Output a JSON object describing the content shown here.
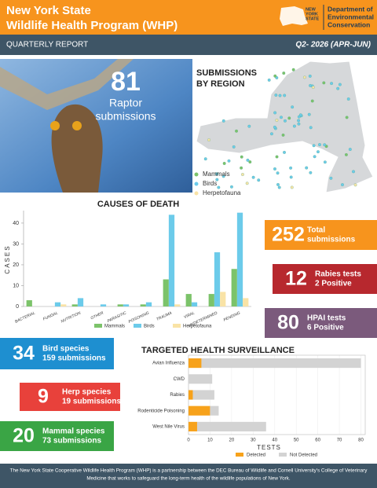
{
  "header": {
    "title_lines": [
      "New York State",
      "Wildlife Health Program (WHP)"
    ],
    "logo_lines": [
      "NEW",
      "YORK",
      "STATE"
    ],
    "agency_lines": [
      "Department of",
      "Environmental",
      "Conservation"
    ]
  },
  "report_bar": {
    "label": "QUARTERLY REPORT",
    "period": "Q2- 2026 (APR-JUN)"
  },
  "photo": {
    "number": 81,
    "label_lines": [
      "Raptor",
      "submissions"
    ]
  },
  "map": {
    "title_lines": [
      "SUBMISSIONS",
      "BY REGION"
    ],
    "legend": [
      {
        "label": "Mammals",
        "color": "#7cc36a"
      },
      {
        "label": "Birds",
        "color": "#6ccbea"
      },
      {
        "label": "Herpetofauna",
        "color": "#f9e3a6"
      }
    ]
  },
  "stats": [
    {
      "number": 252,
      "lines": [
        "Total",
        "submissions"
      ],
      "color": "#f7941d"
    },
    {
      "number": 12,
      "lines": [
        "Rabies tests",
        "2 Positive"
      ],
      "color": "#b7282e"
    },
    {
      "number": 80,
      "lines": [
        "HPAI tests",
        "6 Positive"
      ],
      "color": "#7b5a7c"
    },
    {
      "number": 34,
      "lines": [
        "Bird species",
        "159 submissions"
      ],
      "color": "#1e8fd0"
    },
    {
      "number": 9,
      "lines": [
        "Herp species",
        "19 submissions"
      ],
      "color": "#e8413b"
    },
    {
      "number": 20,
      "lines": [
        "Mammal species",
        "73 submissions"
      ],
      "color": "#3aa545"
    }
  ],
  "chart_data": [
    {
      "type": "bar",
      "title": "CAUSES OF DEATH",
      "ylabel": "CASES",
      "categories": [
        "BACTERIAL",
        "FUNGAL",
        "NUTRITION",
        "OTHER",
        "PARASITIC",
        "POISONING",
        "TRAUMA",
        "VIRAL",
        "UNDETERMINED",
        "PENDING"
      ],
      "series": [
        {
          "name": "Mammals",
          "color": "#7cc36a",
          "values": [
            3,
            0,
            1,
            0,
            1,
            1,
            13,
            6,
            6,
            18
          ]
        },
        {
          "name": "Birds",
          "color": "#6ccbea",
          "values": [
            0,
            2,
            4,
            1,
            1,
            2,
            44,
            2,
            26,
            45
          ]
        },
        {
          "name": "Herpetofauna",
          "color": "#f9e3a6",
          "values": [
            0,
            1,
            0,
            0,
            0,
            0,
            1,
            0,
            7,
            4
          ]
        }
      ],
      "ylim": [
        0,
        46
      ],
      "yticks": [
        0,
        10,
        20,
        30,
        40
      ],
      "grid": false
    },
    {
      "type": "bar",
      "orientation": "horizontal",
      "stacked": true,
      "title": "TARGETED HEALTH SURVEILLANCE",
      "xlabel": "TESTS",
      "categories": [
        "Avian Influenza",
        "CWD",
        "Rabies",
        "Rodenticide Poisoning",
        "West Nile Virus"
      ],
      "series": [
        {
          "name": "Detected",
          "color": "#f7a21b",
          "values": [
            6,
            0,
            2,
            10,
            4
          ]
        },
        {
          "name": "Not Detected",
          "color": "#d3d3d3",
          "values": [
            74,
            11,
            10,
            4,
            32
          ]
        }
      ],
      "xlim": [
        0,
        82
      ],
      "xticks": [
        0,
        10,
        20,
        30,
        40,
        50,
        60,
        70,
        80
      ],
      "grid": true
    }
  ],
  "footer": {
    "lines": [
      "The New York State Cooperative Wildlife Health Program (WHP) is a partnership between the DEC Bureau of Wildlife and Cornell University's College of Veterinary",
      "Medicine that works to safeguard the long-term health of the wildlife populations of New York."
    ]
  }
}
